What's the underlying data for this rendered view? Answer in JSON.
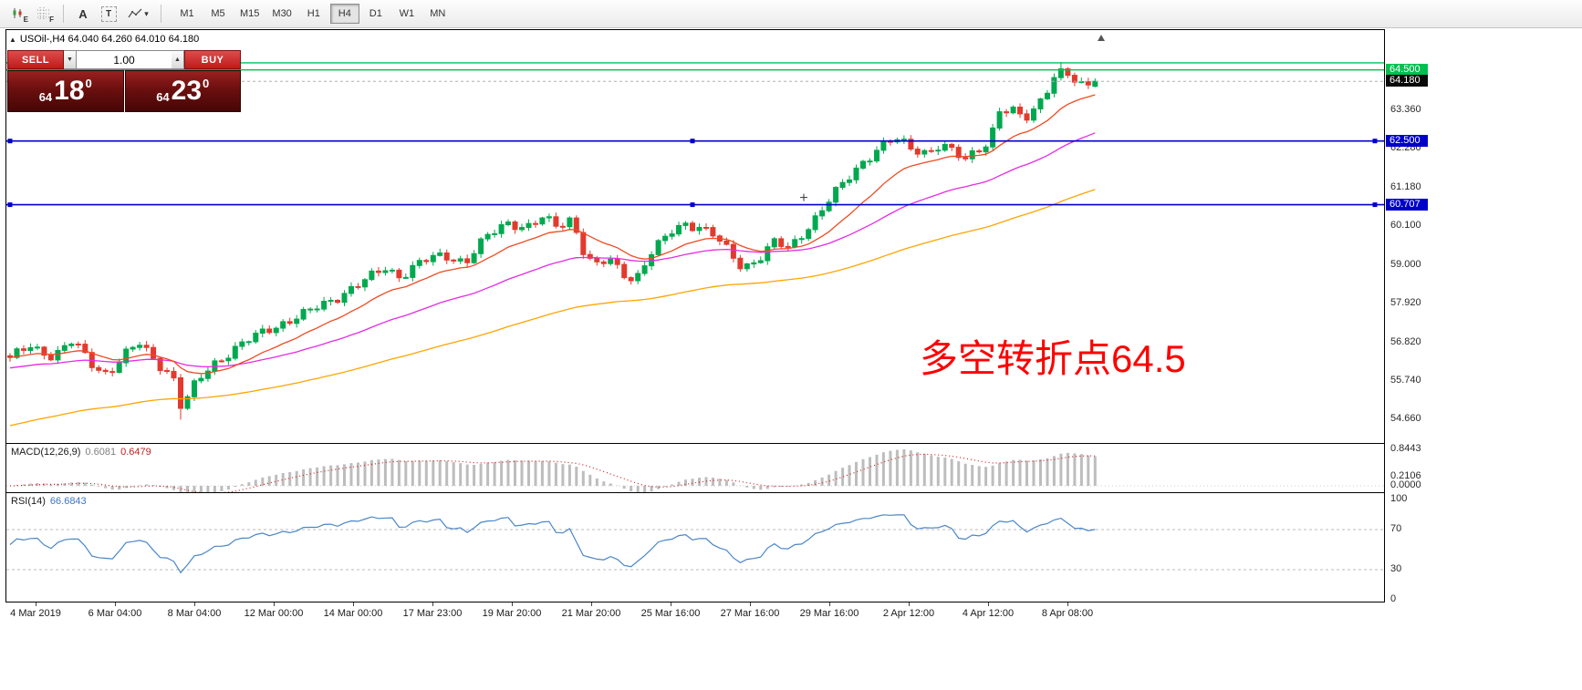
{
  "toolbar": {
    "timeframes": [
      {
        "label": "M1",
        "active": false
      },
      {
        "label": "M5",
        "active": false
      },
      {
        "label": "M15",
        "active": false
      },
      {
        "label": "M30",
        "active": false
      },
      {
        "label": "H1",
        "active": false
      },
      {
        "label": "H4",
        "active": true
      },
      {
        "label": "D1",
        "active": false
      },
      {
        "label": "W1",
        "active": false
      },
      {
        "label": "MN",
        "active": false
      }
    ],
    "icon_glyphs": {
      "expert": "E",
      "fractals": "F",
      "text_tool": "A",
      "textbox_tool": "T"
    }
  },
  "icons": {
    "collapse_panel": "▲",
    "volume_down": "▼",
    "volume_up": "▲",
    "indicator_dropdown": "▾"
  },
  "chart": {
    "symbol_info": "USOil-,H4  64.040 64.260 64.010 64.180"
  },
  "trade_panel": {
    "sell_label": "SELL",
    "buy_label": "BUY",
    "volume": "1.00",
    "sell_price_prefix": "64",
    "sell_price_big": "18",
    "sell_price_sup": "0",
    "buy_price_prefix": "64",
    "buy_price_big": "23",
    "buy_price_sup": "0"
  },
  "annotation": {
    "text": "多空转折点64.5",
    "color": "#FF0000"
  },
  "indicators": {
    "macd": {
      "name": "MACD(12,26,9)",
      "value_main": "0.6081",
      "value_signal": "0.6479",
      "scale_top": "0.8443",
      "scale_mid": "0.2106",
      "scale_zero": "0.0000"
    },
    "rsi": {
      "name": "RSI(14)",
      "value": "66.6843",
      "scale_top": "100",
      "scale_70": "70",
      "scale_30": "30",
      "scale_bottom": "0"
    }
  },
  "price_axis": {
    "ticks": [
      "63.360",
      "62.280",
      "61.180",
      "60.100",
      "59.000",
      "57.920",
      "56.820",
      "55.740",
      "54.660"
    ],
    "tags": [
      {
        "text": "64.500",
        "price": 64.5,
        "bg": "#00C050",
        "name": "resistance-price-tag"
      },
      {
        "text": "64.180",
        "price": 64.18,
        "bg": "#0a0a0a",
        "name": "current-price-tag"
      },
      {
        "text": "62.500",
        "price": 62.5,
        "bg": "#0000C8",
        "name": "support-price-tag-1"
      },
      {
        "text": "60.707",
        "price": 60.707,
        "bg": "#0000C8",
        "name": "support-price-tag-2"
      }
    ]
  },
  "time_axis": {
    "labels": [
      "4 Mar 2019",
      "6 Mar 04:00",
      "8 Mar 04:00",
      "12 Mar 00:00",
      "14 Mar 00:00",
      "17 Mar 23:00",
      "19 Mar 20:00",
      "21 Mar 20:00",
      "25 Mar 16:00",
      "27 Mar 16:00",
      "29 Mar 16:00",
      "2 Apr 12:00",
      "4 Apr 12:00",
      "8 Apr 08:00"
    ]
  },
  "colors": {
    "up": "#00A94F",
    "down": "#E23A2E",
    "green_line": "#00C050",
    "blue_line": "#0000C8",
    "current_line": "#b0b0b0",
    "ma_fast": "#F04A22",
    "ma_medium": "#E52BE5",
    "ma_slow": "#FFA500",
    "macd_hist": "#BDBDBD",
    "macd_signal": "#CC2020",
    "rsi_line": "#4A86C8",
    "rsi_levels": "#BBBBBB"
  },
  "chart_data": {
    "type": "candlestick",
    "symbol": "USOil-",
    "timeframe": "H4",
    "current_ohlc": {
      "open": 64.04,
      "high": 64.26,
      "low": 64.01,
      "close": 64.18
    },
    "session_low": 54.66,
    "session_high": 64.72,
    "y_axis_ticks": [
      63.36,
      62.28,
      61.18,
      60.1,
      59.0,
      57.92,
      56.82,
      55.74,
      54.66
    ],
    "y_range": [
      54.0,
      65.6
    ],
    "levels": {
      "green_lines": [
        64.7,
        64.5
      ],
      "blue_lines": [
        62.5,
        60.707
      ],
      "current_price": 64.18
    },
    "moving_averages": [
      {
        "name": "fast-ma",
        "period": 14,
        "seed": null
      },
      {
        "name": "medium-ma",
        "period": 40,
        "seed": 56.1
      },
      {
        "name": "slow-ma",
        "period": 95,
        "seed": 54.45
      }
    ],
    "macd": {
      "fast": 12,
      "slow": 26,
      "signal": 9,
      "value_main": 0.6081,
      "value_signal": 0.6479,
      "scale_max": 0.8443
    },
    "rsi": {
      "period": 14,
      "value": 66.6843,
      "levels": [
        70,
        30
      ]
    },
    "num_candles": 160,
    "price_anchors": [
      [
        0,
        56.35
      ],
      [
        0.018,
        56.75
      ],
      [
        0.04,
        56.45
      ],
      [
        0.058,
        56.85
      ],
      [
        0.075,
        56.25
      ],
      [
        0.09,
        55.95
      ],
      [
        0.105,
        56.45
      ],
      [
        0.12,
        56.8
      ],
      [
        0.135,
        56.3
      ],
      [
        0.15,
        55.9
      ],
      [
        0.158,
        54.95
      ],
      [
        0.17,
        55.6
      ],
      [
        0.185,
        56.2
      ],
      [
        0.21,
        56.7
      ],
      [
        0.24,
        57.25
      ],
      [
        0.27,
        57.6
      ],
      [
        0.3,
        58.1
      ],
      [
        0.33,
        58.6
      ],
      [
        0.345,
        58.95
      ],
      [
        0.36,
        58.7
      ],
      [
        0.38,
        59.1
      ],
      [
        0.4,
        59.3
      ],
      [
        0.42,
        59.1
      ],
      [
        0.44,
        59.8
      ],
      [
        0.46,
        60.25
      ],
      [
        0.475,
        60.05
      ],
      [
        0.49,
        60.3
      ],
      [
        0.505,
        60.1
      ],
      [
        0.518,
        60.35
      ],
      [
        0.528,
        59.45
      ],
      [
        0.538,
        58.95
      ],
      [
        0.552,
        59.15
      ],
      [
        0.565,
        58.8
      ],
      [
        0.576,
        58.6
      ],
      [
        0.59,
        59.3
      ],
      [
        0.61,
        59.95
      ],
      [
        0.622,
        60.2
      ],
      [
        0.635,
        60.1
      ],
      [
        0.648,
        59.85
      ],
      [
        0.66,
        59.45
      ],
      [
        0.675,
        58.95
      ],
      [
        0.69,
        59.2
      ],
      [
        0.705,
        59.65
      ],
      [
        0.718,
        59.45
      ],
      [
        0.73,
        59.9
      ],
      [
        0.745,
        60.45
      ],
      [
        0.757,
        60.9
      ],
      [
        0.77,
        61.35
      ],
      [
        0.785,
        61.9
      ],
      [
        0.8,
        62.3
      ],
      [
        0.815,
        62.55
      ],
      [
        0.83,
        62.3
      ],
      [
        0.845,
        62.2
      ],
      [
        0.858,
        62.4
      ],
      [
        0.87,
        62.15
      ],
      [
        0.88,
        61.95
      ],
      [
        0.892,
        62.3
      ],
      [
        0.902,
        62.5
      ],
      [
        0.912,
        63.35
      ],
      [
        0.925,
        63.3
      ],
      [
        0.935,
        63.1
      ],
      [
        0.945,
        63.45
      ],
      [
        0.955,
        63.95
      ],
      [
        0.965,
        64.45
      ],
      [
        0.975,
        64.35
      ],
      [
        0.985,
        64.0
      ],
      [
        1,
        64.18
      ]
    ]
  }
}
